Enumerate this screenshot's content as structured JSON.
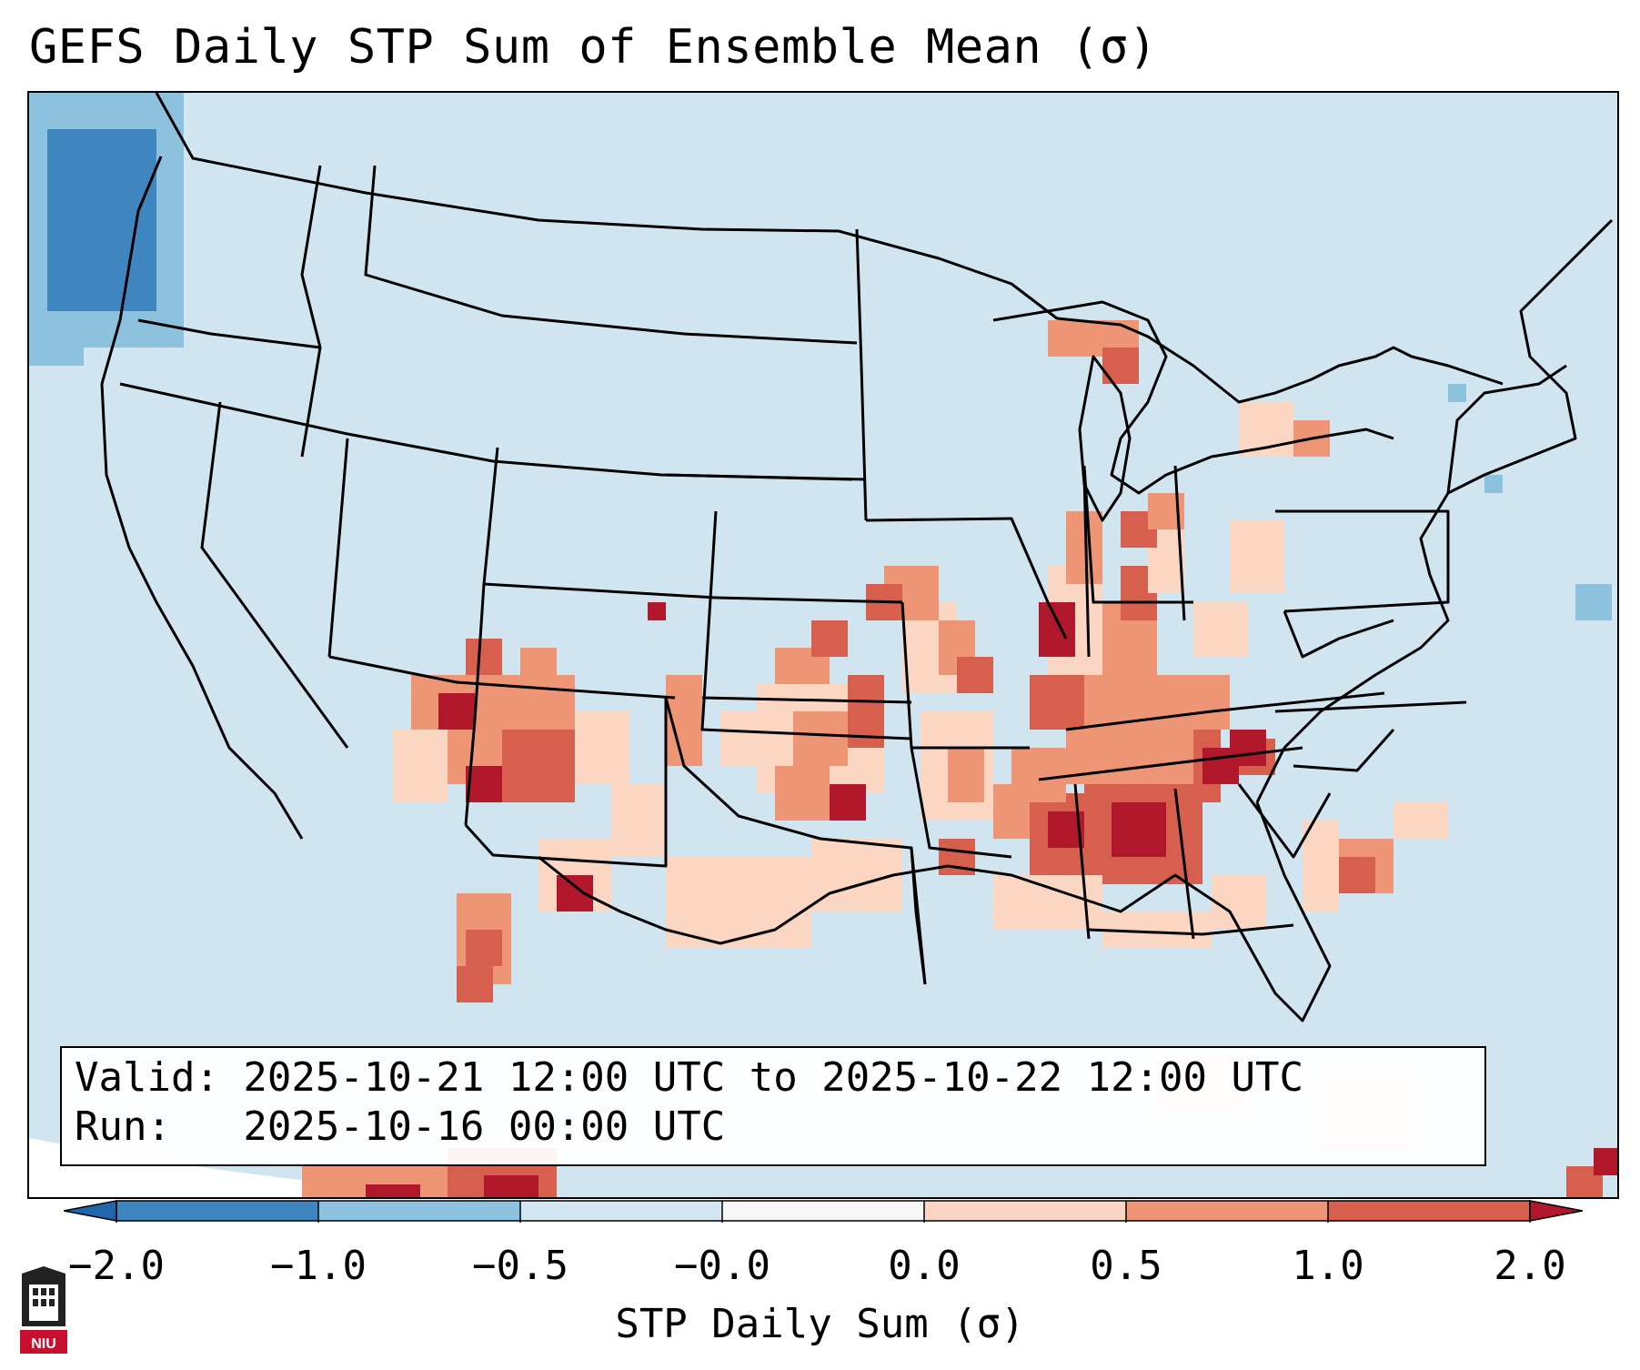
{
  "title": "GEFS Daily STP Sum of Ensemble Mean (σ)",
  "valid_line": "Valid: 2025-10-21 12:00 UTC to 2025-10-22 12:00 UTC",
  "run_line": "Run:   2025-10-16 00:00 UTC",
  "colorbar": {
    "label": "STP Daily Sum (σ)",
    "ticks": [
      "−2.0",
      "−1.0",
      "−0.5",
      "−0.0",
      "0.0",
      "0.5",
      "1.0",
      "2.0"
    ],
    "colors": [
      "#3f86c1",
      "#8dc2de",
      "#d3e6f1",
      "#f7f7f7",
      "#fbd6c2",
      "#ee9575",
      "#d6604d",
      "#b2182b"
    ],
    "under_color": "#2166ac",
    "over_color": "#b2182b"
  },
  "map": {
    "background_color": "#d1e5f0",
    "region": "Contiguous United States",
    "projection": "Lambert Conformal",
    "max_signal_region": "Mississippi, Alabama, Tennessee, Georgia"
  },
  "logo": {
    "text": "NIU",
    "color": "#c8102e"
  }
}
